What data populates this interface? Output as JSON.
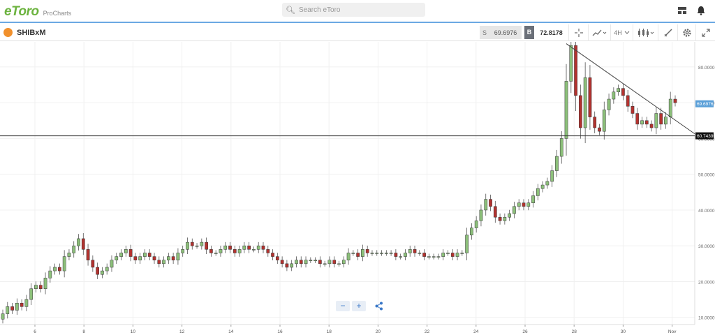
{
  "header": {
    "logo_text": "eToro",
    "logo_sub": "ProCharts",
    "search_placeholder": "Search eToro",
    "icons": [
      "layout-icon",
      "bell-icon"
    ]
  },
  "toolbar": {
    "asset_name": "SHIBxM",
    "sell_tag": "S",
    "sell_price": "69.6976",
    "buy_tag": "B",
    "buy_price": "72.8178",
    "interval": "4H",
    "icons": [
      "crosshair-icon",
      "chart-type-icon",
      "candles-icon",
      "draw-icon",
      "settings-icon",
      "expand-icon"
    ]
  },
  "controls": {
    "zoom_out": "−",
    "zoom_in": "+"
  },
  "colors": {
    "up": "#8cc07a",
    "down": "#b3322f",
    "accent": "#6ba8e3",
    "brand": "#6cb33f"
  },
  "chart_data": {
    "type": "candlestick",
    "ylim": [
      8,
      87
    ],
    "yticks": [
      "10.0000",
      "20.0000",
      "30.0000",
      "40.0000",
      "50.0000",
      "60.0000",
      "70.0000",
      "80.0000"
    ],
    "xticks": [
      "6",
      "8",
      "10",
      "12",
      "14",
      "16",
      "18",
      "20",
      "22",
      "24",
      "26",
      "28",
      "30",
      "Nov"
    ],
    "current_price_label": "69.6976",
    "horizontal_line_label": "60.7439",
    "horizontal_line_value": 60.7439,
    "trendline": {
      "from_value": 86.5,
      "to_value": 61.3
    },
    "closes": [
      11,
      13,
      12,
      14,
      13,
      15,
      18,
      19,
      18,
      21,
      23,
      24,
      23,
      27,
      28,
      30,
      32,
      29,
      26,
      24,
      22,
      23,
      24,
      26,
      27,
      28,
      29,
      27,
      26,
      27,
      28,
      27,
      26,
      25,
      26,
      27,
      26,
      28,
      29,
      31,
      30,
      30,
      31,
      29,
      28,
      28,
      29,
      30,
      29,
      28,
      29,
      30,
      29,
      29,
      30,
      29,
      28,
      27,
      26,
      25,
      24,
      25,
      26,
      25,
      26,
      26,
      26,
      25,
      25,
      26,
      25,
      25,
      26,
      28,
      28,
      27,
      29,
      28,
      28,
      28,
      28,
      28,
      28,
      27,
      27,
      28,
      29,
      28,
      28,
      27,
      27,
      27,
      27,
      28,
      28,
      27,
      28,
      28,
      33,
      35,
      37,
      40,
      43,
      41,
      38,
      37,
      38,
      39,
      41,
      42,
      41,
      42,
      44,
      46,
      47,
      48,
      51,
      55,
      60,
      76,
      86,
      72,
      63,
      77,
      66,
      63,
      62,
      68,
      71,
      73,
      74,
      72,
      69,
      67,
      64,
      65,
      64,
      63,
      67,
      64,
      66,
      71,
      70
    ]
  }
}
